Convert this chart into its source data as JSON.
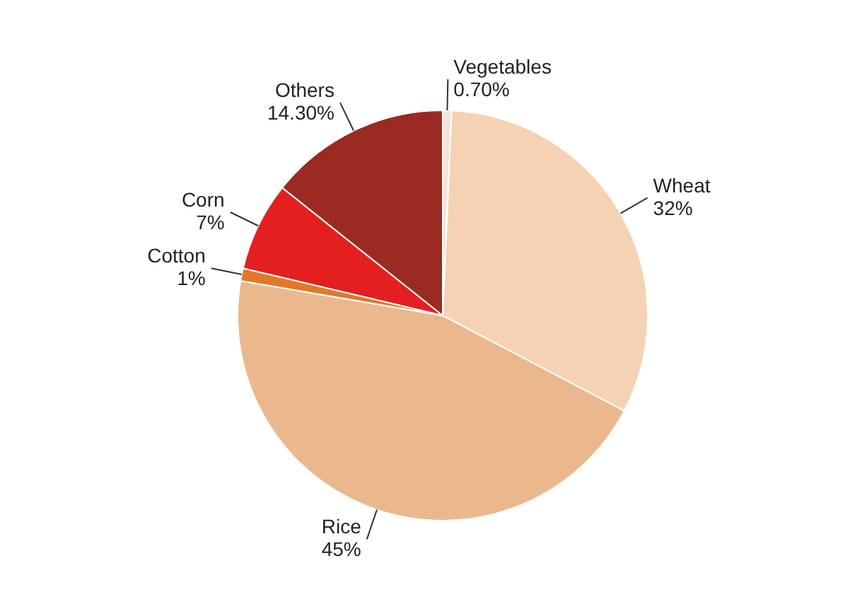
{
  "chart_data": {
    "type": "pie",
    "categories": [
      "Vegetables",
      "Wheat",
      "Rice",
      "Cotton",
      "Corn",
      "Others"
    ],
    "values": [
      0.7,
      32,
      45,
      1,
      7,
      14.3
    ],
    "colors": [
      "#f9e2d4",
      "#f5d2b3",
      "#ebb88e",
      "#e2772a",
      "#e3201f",
      "#9a2a22"
    ],
    "value_labels": [
      "0.70%",
      "32%",
      "45%",
      "1%",
      "7%",
      "14.30%"
    ]
  }
}
